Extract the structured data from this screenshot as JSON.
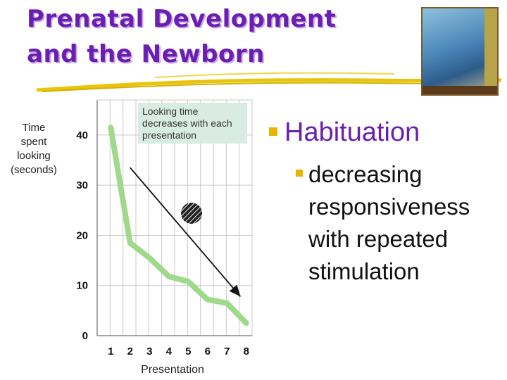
{
  "slide": {
    "title_line1": "Prenatal Development",
    "title_line2": "and the Newborn",
    "bullet_main": "Habituation",
    "bullet_sub": "decreasing responsiveness with repeated stimulation"
  },
  "colors": {
    "title": "#6a1fb0",
    "bullet_marker": "#e8b400",
    "series_line": "#9fd98a",
    "callout_bg": "#d9ece4",
    "gridline": "#c8c8c8"
  },
  "icons": [
    "cover-image-icon",
    "hatched-circle-icon"
  ],
  "chart_data": {
    "type": "line",
    "xlabel": "Presentation",
    "ylabel": "Time spent looking (seconds)",
    "ylabel_lines": [
      "Time",
      "spent",
      "looking",
      "(seconds)"
    ],
    "annotation_lines": [
      "Looking time",
      "decreases with each",
      "presentation"
    ],
    "x": [
      1,
      2,
      3,
      4,
      5,
      6,
      7,
      8
    ],
    "x_ticks": [
      "1",
      "2",
      "3",
      "4",
      "5",
      "6",
      "7",
      "8"
    ],
    "y_ticks": [
      "0",
      "10",
      "20",
      "30",
      "40"
    ],
    "y_tick_values": [
      0,
      10,
      20,
      30,
      40
    ],
    "ylim": [
      0,
      47
    ],
    "xlim": [
      0.3,
      8.3
    ],
    "series": [
      {
        "values": [
          41.5,
          18.5,
          15.5,
          11.8,
          10.8,
          7.2,
          6.5,
          2.5
        ]
      }
    ],
    "trend_arrow": {
      "from": [
        2,
        33.5
      ],
      "to": [
        7.7,
        7.8
      ]
    },
    "grid": true
  }
}
